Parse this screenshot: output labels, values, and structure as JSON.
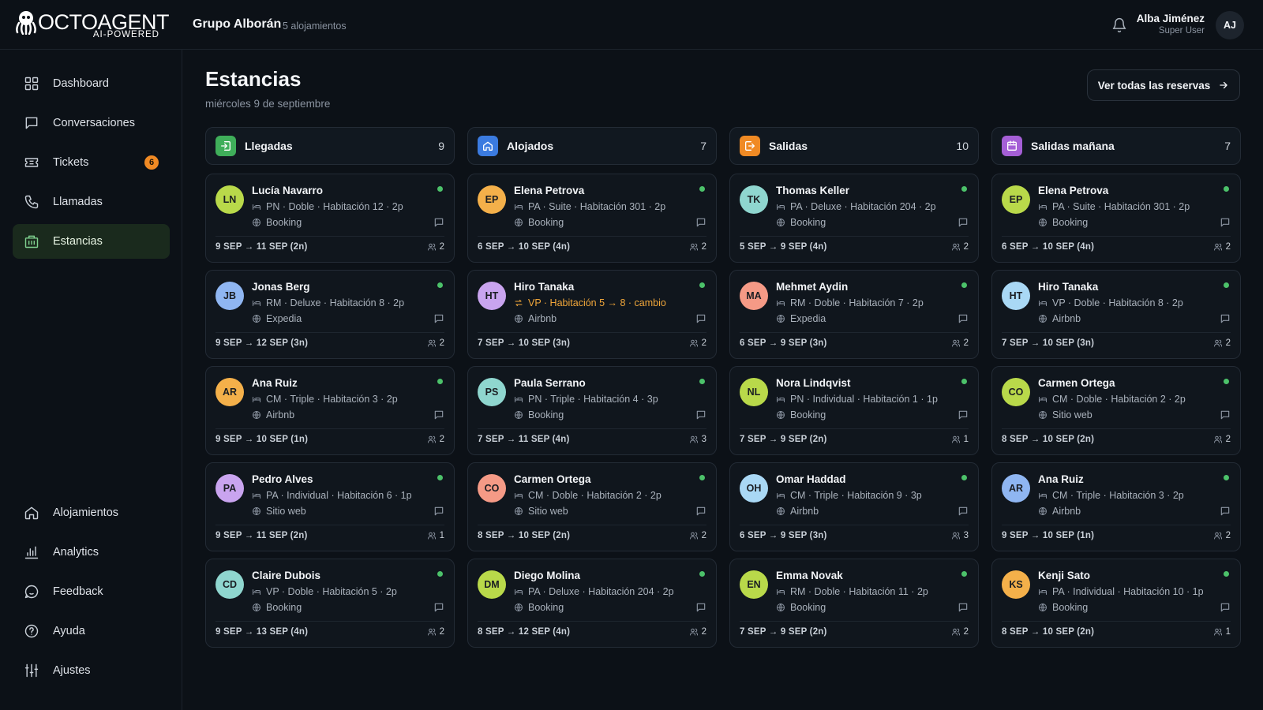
{
  "app": {
    "logo_text": "OCTOAGENT",
    "logo_sub": "AI-POWERED",
    "org_name": "Grupo Alborán",
    "org_sub": "5 alojamientos",
    "user": {
      "name": "Alba Jiménez",
      "role": "Super User",
      "initials": "AJ"
    }
  },
  "sidebar": {
    "top": [
      {
        "label": "Dashboard",
        "icon": "grid-icon"
      },
      {
        "label": "Conversaciones",
        "icon": "chat-icon"
      },
      {
        "label": "Tickets",
        "icon": "ticket-icon",
        "badge": "6"
      },
      {
        "label": "Llamadas",
        "icon": "phone-icon"
      },
      {
        "label": "Estancias",
        "icon": "building-icon",
        "active": true
      }
    ],
    "bottom": [
      {
        "label": "Alojamientos",
        "icon": "home-icon"
      },
      {
        "label": "Analytics",
        "icon": "bar-chart-icon"
      },
      {
        "label": "Feedback",
        "icon": "feedback-icon"
      },
      {
        "label": "Ayuda",
        "icon": "help-icon"
      },
      {
        "label": "Ajustes",
        "icon": "sliders-icon"
      }
    ]
  },
  "page": {
    "title": "Estancias",
    "date": "miércoles 9 de septiembre",
    "view_all": "Ver todas las reservas"
  },
  "colors": {
    "accent_green": "#4cc26a",
    "badge_orange": "#f08a24",
    "change_amber": "#f0a63a"
  },
  "columns": [
    {
      "title": "Llegadas",
      "count": "9",
      "icon": "arrival-icon",
      "color": "#3fae5a",
      "cards": [
        {
          "initials": "LN",
          "name": "Lucía Navarro",
          "room": "PN · Doble · Habitación 12 · 2p",
          "channel": "Booking",
          "dates": "9 SEP → 11 SEP (2n)",
          "pax": "2",
          "avatar_color": "#b9d94a"
        },
        {
          "initials": "JB",
          "name": "Jonas Berg",
          "room": "RM · Deluxe · Habitación 8 · 2p",
          "channel": "Expedia",
          "dates": "9 SEP → 12 SEP (3n)",
          "pax": "2",
          "avatar_color": "#8fb6f2"
        },
        {
          "initials": "AR",
          "name": "Ana Ruiz",
          "room": "CM · Triple · Habitación 3 · 2p",
          "channel": "Airbnb",
          "dates": "9 SEP → 10 SEP (1n)",
          "pax": "2",
          "avatar_color": "#f4b04a"
        },
        {
          "initials": "PA",
          "name": "Pedro Alves",
          "room": "PA · Individual · Habitación 6 · 1p",
          "channel": "Sitio web",
          "dates": "9 SEP → 11 SEP (2n)",
          "pax": "1",
          "avatar_color": "#c9a4ef"
        },
        {
          "initials": "CD",
          "name": "Claire Dubois",
          "room": "VP · Doble · Habitación 5 · 2p",
          "channel": "Booking",
          "dates": "9 SEP → 13 SEP (4n)",
          "pax": "2",
          "avatar_color": "#8fd6cf"
        }
      ]
    },
    {
      "title": "Alojados",
      "count": "7",
      "icon": "home-icon",
      "color": "#3b7be0",
      "cards": [
        {
          "initials": "EP",
          "name": "Elena Petrova",
          "room": "PA · Suite · Habitación 301 · 2p",
          "channel": "Booking",
          "dates": "6 SEP → 10 SEP (4n)",
          "pax": "2",
          "avatar_color": "#f4b04a"
        },
        {
          "initials": "HT",
          "name": "Hiro Tanaka",
          "room": "VP · Habitación 5 → 8 · cambio",
          "room_change": true,
          "channel": "Airbnb",
          "dates": "7 SEP → 10 SEP (3n)",
          "pax": "2",
          "avatar_color": "#c9a4ef"
        },
        {
          "initials": "PS",
          "name": "Paula Serrano",
          "room": "PN · Triple · Habitación 4 · 3p",
          "channel": "Booking",
          "dates": "7 SEP → 11 SEP (4n)",
          "pax": "3",
          "avatar_color": "#8fd6cf"
        },
        {
          "initials": "CO",
          "name": "Carmen Ortega",
          "room": "CM · Doble · Habitación 2 · 2p",
          "channel": "Sitio web",
          "dates": "8 SEP → 10 SEP (2n)",
          "pax": "2",
          "avatar_color": "#f59a86"
        },
        {
          "initials": "DM",
          "name": "Diego Molina",
          "room": "PA · Deluxe · Habitación 204 · 2p",
          "channel": "Booking",
          "dates": "8 SEP → 12 SEP (4n)",
          "pax": "2",
          "avatar_color": "#b9d94a"
        }
      ]
    },
    {
      "title": "Salidas",
      "count": "10",
      "icon": "departure-icon",
      "color": "#f08a24",
      "cards": [
        {
          "initials": "TK",
          "name": "Thomas Keller",
          "room": "PA · Deluxe · Habitación 204 · 2p",
          "channel": "Booking",
          "dates": "5 SEP → 9 SEP (4n)",
          "pax": "2",
          "avatar_color": "#8fd6cf"
        },
        {
          "initials": "MA",
          "name": "Mehmet Aydin",
          "room": "RM · Doble · Habitación 7 · 2p",
          "channel": "Expedia",
          "dates": "6 SEP → 9 SEP (3n)",
          "pax": "2",
          "avatar_color": "#f59a86"
        },
        {
          "initials": "NL",
          "name": "Nora Lindqvist",
          "room": "PN · Individual · Habitación 1 · 1p",
          "channel": "Booking",
          "dates": "7 SEP → 9 SEP (2n)",
          "pax": "1",
          "avatar_color": "#b9d94a"
        },
        {
          "initials": "OH",
          "name": "Omar Haddad",
          "room": "CM · Triple · Habitación 9 · 3p",
          "channel": "Airbnb",
          "dates": "6 SEP → 9 SEP (3n)",
          "pax": "3",
          "avatar_color": "#a9d8f5"
        },
        {
          "initials": "EN",
          "name": "Emma Novak",
          "room": "RM · Doble · Habitación 11 · 2p",
          "channel": "Booking",
          "dates": "7 SEP → 9 SEP (2n)",
          "pax": "2",
          "avatar_color": "#b9d94a"
        }
      ]
    },
    {
      "title": "Salidas mañana",
      "count": "7",
      "icon": "calendar-icon",
      "color": "#a55fd6",
      "cards": [
        {
          "initials": "EP",
          "name": "Elena Petrova",
          "room": "PA · Suite · Habitación 301 · 2p",
          "channel": "Booking",
          "dates": "6 SEP → 10 SEP (4n)",
          "pax": "2",
          "avatar_color": "#b9d94a"
        },
        {
          "initials": "HT",
          "name": "Hiro Tanaka",
          "room": "VP · Doble · Habitación 8 · 2p",
          "channel": "Airbnb",
          "dates": "7 SEP → 10 SEP (3n)",
          "pax": "2",
          "avatar_color": "#a9d8f5"
        },
        {
          "initials": "CO",
          "name": "Carmen Ortega",
          "room": "CM · Doble · Habitación 2 · 2p",
          "channel": "Sitio web",
          "dates": "8 SEP → 10 SEP (2n)",
          "pax": "2",
          "avatar_color": "#b9d94a"
        },
        {
          "initials": "AR",
          "name": "Ana Ruiz",
          "room": "CM · Triple · Habitación 3 · 2p",
          "channel": "Airbnb",
          "dates": "9 SEP → 10 SEP (1n)",
          "pax": "2",
          "avatar_color": "#8fb6f2"
        },
        {
          "initials": "KS",
          "name": "Kenji Sato",
          "room": "PA · Individual · Habitación 10 · 1p",
          "channel": "Booking",
          "dates": "8 SEP → 10 SEP (2n)",
          "pax": "1",
          "avatar_color": "#f4b04a"
        }
      ]
    }
  ]
}
